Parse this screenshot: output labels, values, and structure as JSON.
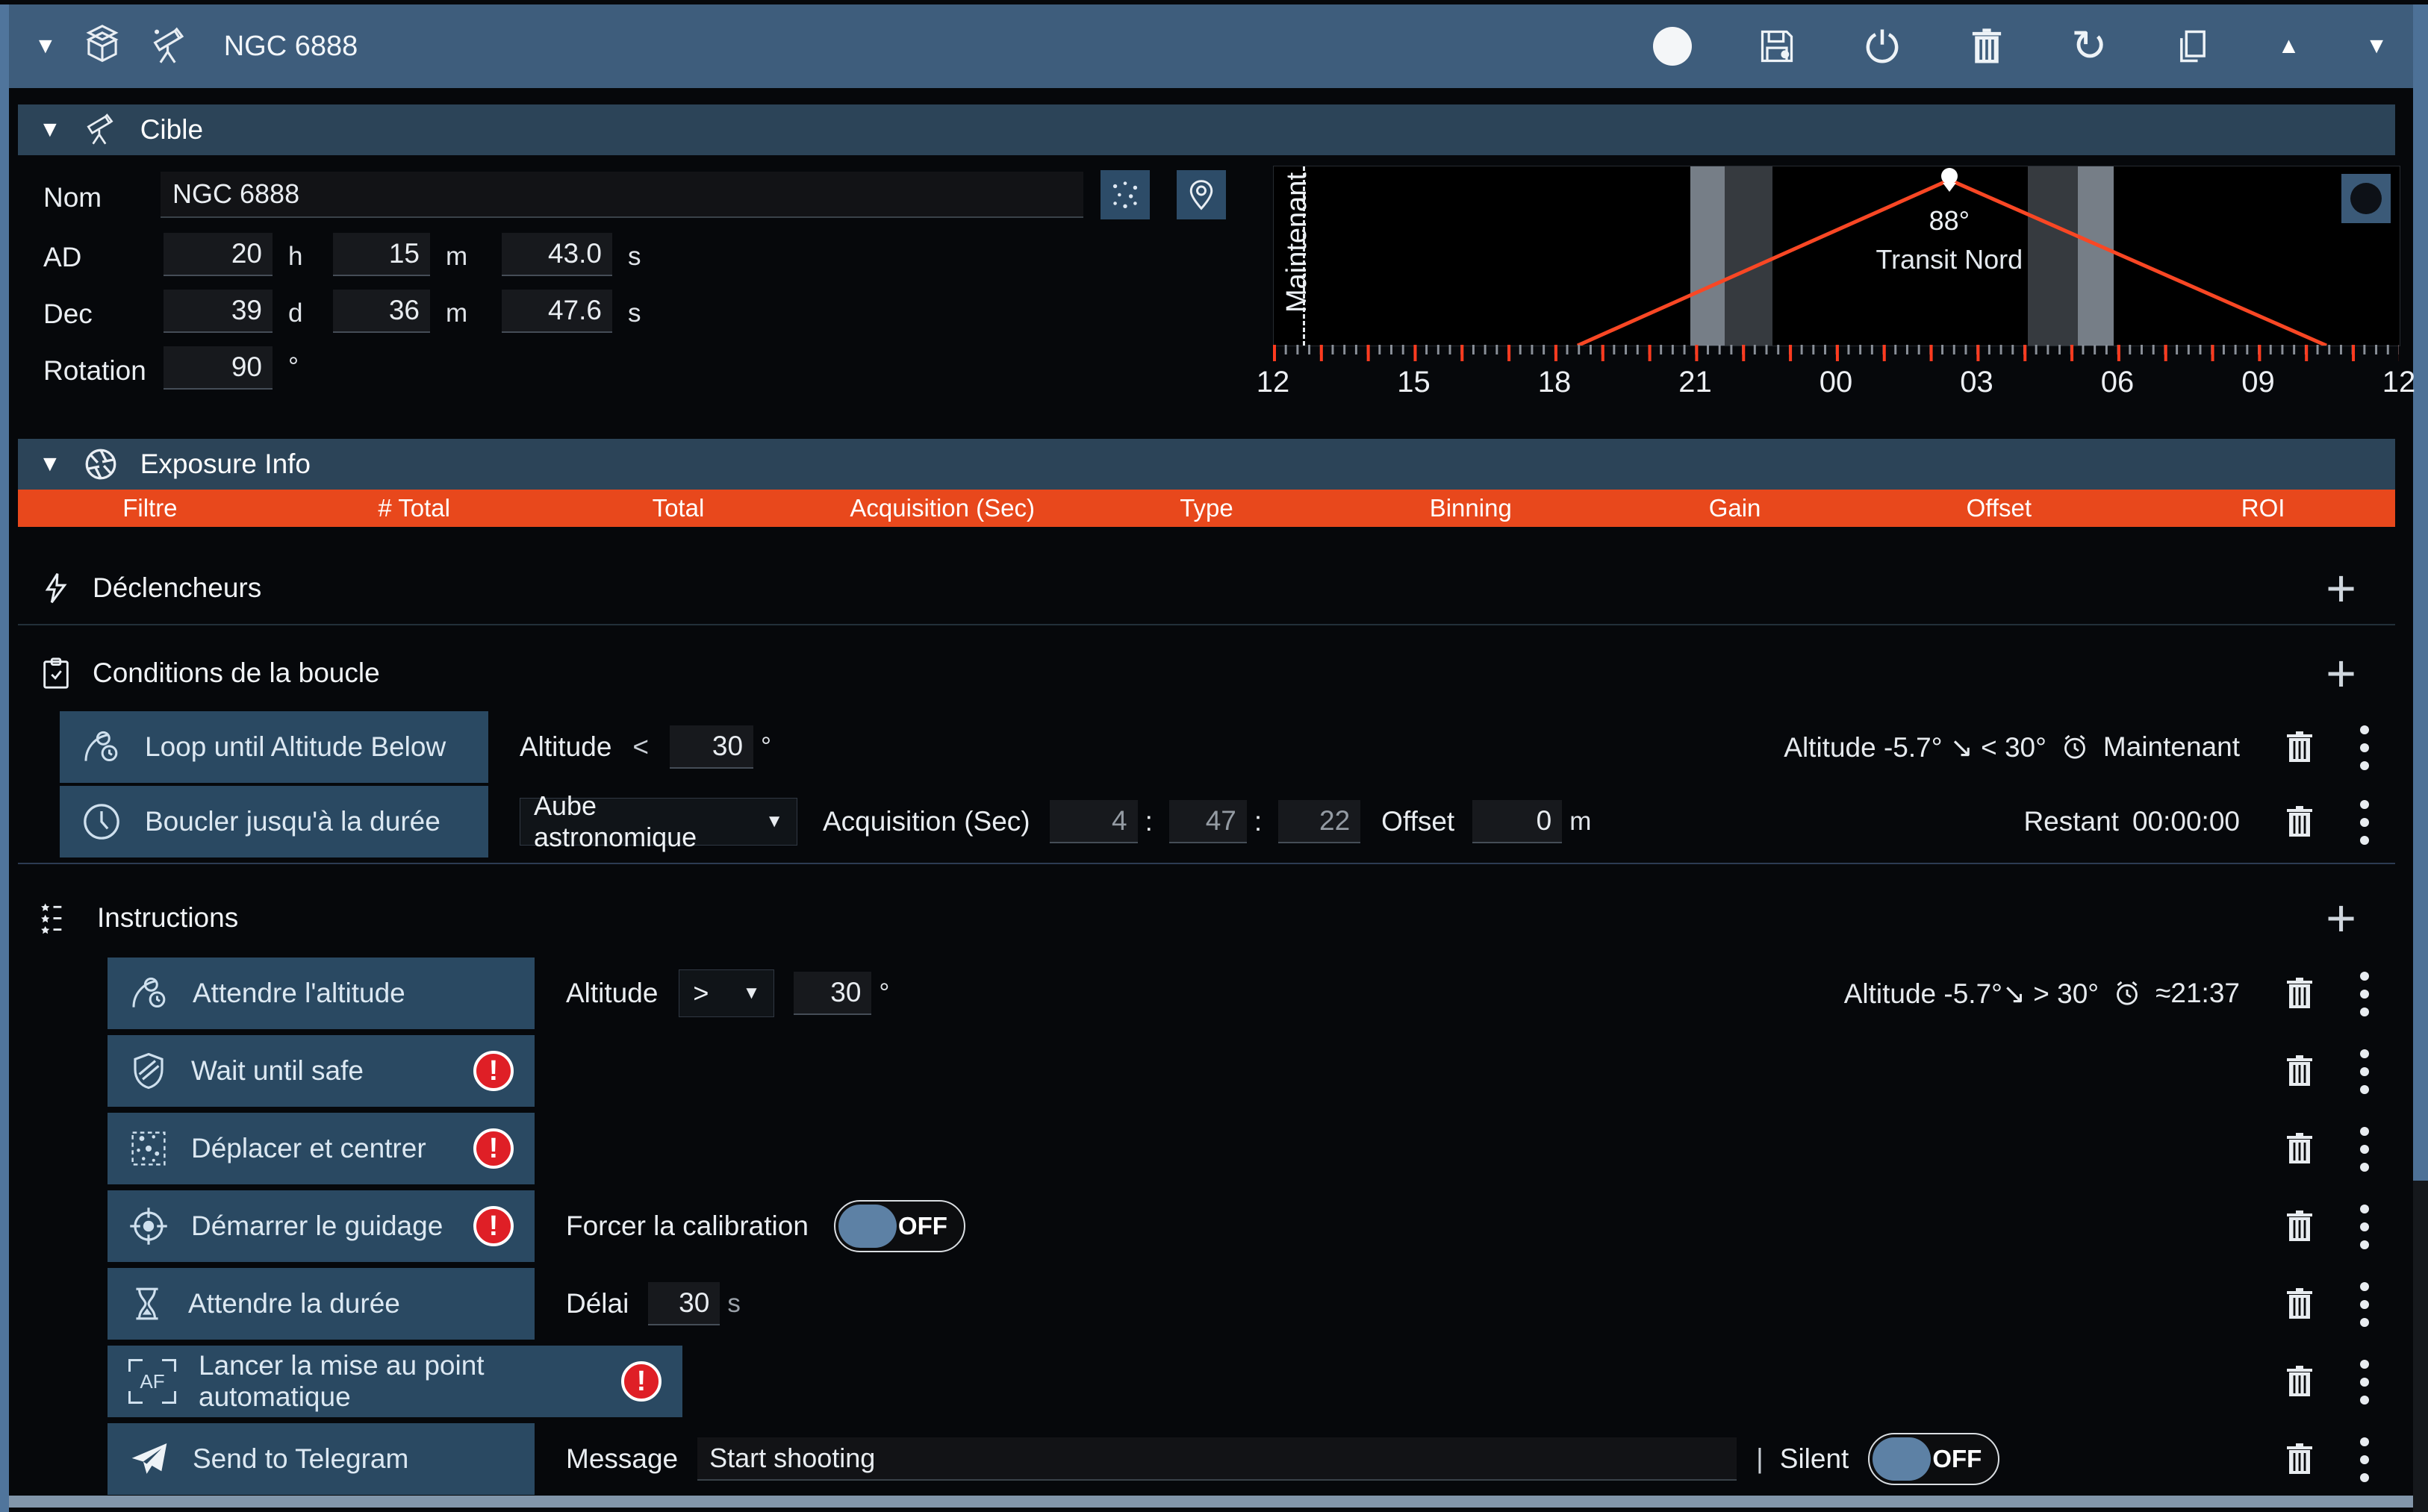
{
  "misc": {
    "caret": "▼",
    "collapse": "▼",
    "tri_up": "▲",
    "tri_down": "▼",
    "plus": "+",
    "pipe": "|",
    "error_glyph": "!",
    "refresh_glyph": "↻",
    "colon": ":"
  },
  "titlebar": {
    "title": "NGC 6888"
  },
  "target": {
    "header": "Cible",
    "nom_label": "Nom",
    "nom_value": "NGC 6888",
    "ad_label": "AD",
    "ad_h": "20",
    "ad_h_u": "h",
    "ad_m": "15",
    "ad_m_u": "m",
    "ad_s": "43.0",
    "ad_s_u": "s",
    "dec_label": "Dec",
    "dec_d": "39",
    "dec_d_u": "d",
    "dec_m": "36",
    "dec_m_u": "m",
    "dec_s": "47.6",
    "dec_s_u": "s",
    "rot_label": "Rotation",
    "rot_value": "90",
    "rot_u": "°",
    "chart": {
      "type": "line",
      "now_label": "Maintenant",
      "peak_value": "88°",
      "peak_label": "Transit Nord",
      "x_labels": [
        "12",
        "15",
        "18",
        "21",
        "00",
        "03",
        "06",
        "09",
        "12"
      ],
      "line_color": "#f94724",
      "rise_time": "18:20",
      "transit_time": "02:50",
      "set_time": "11:30"
    }
  },
  "exposure": {
    "header": "Exposure Info",
    "header_color": "#e8481c",
    "columns": [
      "Filtre",
      "# Total",
      "Total",
      "Acquisition (Sec)",
      "Type",
      "Binning",
      "Gain",
      "Offset",
      "ROI"
    ]
  },
  "triggers": {
    "label": "Déclencheurs"
  },
  "conditions": {
    "label": "Conditions de la boucle",
    "rows": [
      {
        "button": "Loop until Altitude Below",
        "field": "Altitude",
        "op": "<",
        "value": "30",
        "unit": "°",
        "status": "Altitude  -5.7° ↘  < 30°",
        "eta": "Maintenant"
      },
      {
        "button": "Boucler jusqu'à la durée",
        "dropdown": "Aube astronomique",
        "acq_label": "Acquisition (Sec)",
        "h": "4",
        "m": "47",
        "s": "22",
        "offset_label": "Offset",
        "offset": "0",
        "offset_unit": "m",
        "restant_label": "Restant",
        "restant_value": "00:00:00"
      }
    ]
  },
  "instructions": {
    "label": "Instructions",
    "rows": [
      {
        "label": "Attendre l'altitude",
        "field": "Altitude",
        "op": ">",
        "value": "30",
        "unit": "°",
        "status": "Altitude  -5.7°↘  > 30°",
        "eta": "≈21:37"
      },
      {
        "label": "Wait until safe"
      },
      {
        "label": "Déplacer et centrer"
      },
      {
        "label": "Démarrer le guidage",
        "toggle_label": "Forcer la calibration",
        "toggle_state": "OFF"
      },
      {
        "label": "Attendre la durée",
        "delay_label": "Délai",
        "value": "30",
        "unit": "s"
      },
      {
        "label": "Lancer la mise au point automatique",
        "icon_text": "AF"
      },
      {
        "label": "Send to Telegram",
        "msg_label": "Message",
        "msg_value": "Start shooting",
        "silent_label": "Silent",
        "toggle_state": "OFF"
      }
    ]
  }
}
